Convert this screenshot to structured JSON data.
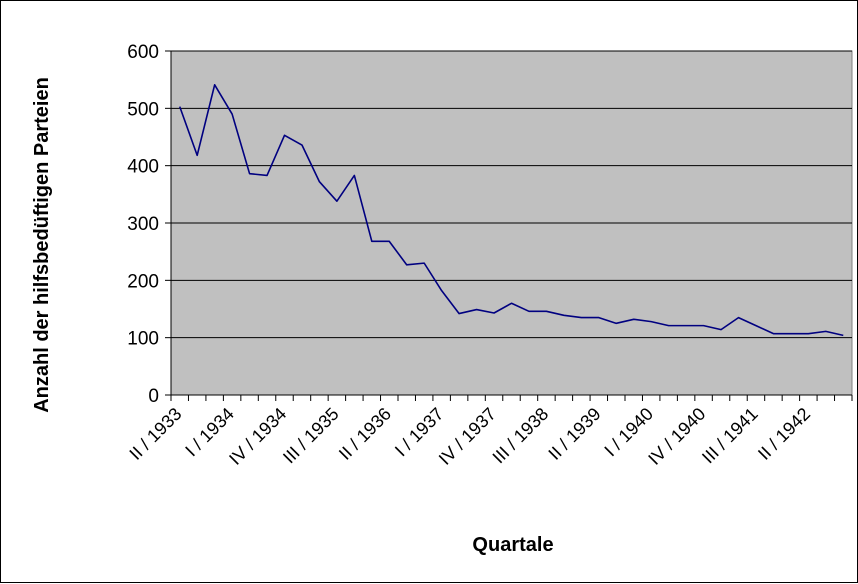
{
  "chart_data": {
    "type": "line",
    "xlabel": "Quartale",
    "ylabel": "Anzahl der hilfsbedüftigen Parteien",
    "ylim": [
      0,
      600
    ],
    "yticks": [
      "0",
      "100",
      "200",
      "300",
      "400",
      "500",
      "600"
    ],
    "grid": "horizontal",
    "legend": "none",
    "colors": {
      "line": "#000080",
      "plot_bg": "#c0c0c0",
      "grid": "#000000"
    },
    "x_tick_labels": [
      "II / 1933",
      "I / 1934",
      "IV / 1934",
      "III / 1935",
      "II / 1936",
      "I / 1937",
      "IV / 1937",
      "III / 1938",
      "II / 1939",
      "I / 1940",
      "IV / 1940",
      "III / 1941",
      "II / 1942"
    ],
    "series": [
      {
        "values": [
          503,
          418,
          541,
          490,
          386,
          383,
          453,
          436,
          372,
          338,
          383,
          268,
          268,
          227,
          230,
          182,
          142,
          149,
          143,
          160,
          146,
          146,
          139,
          135,
          135,
          125,
          132,
          128,
          121,
          121,
          121,
          114,
          135,
          121,
          107,
          107,
          107,
          111,
          104
        ]
      }
    ]
  }
}
